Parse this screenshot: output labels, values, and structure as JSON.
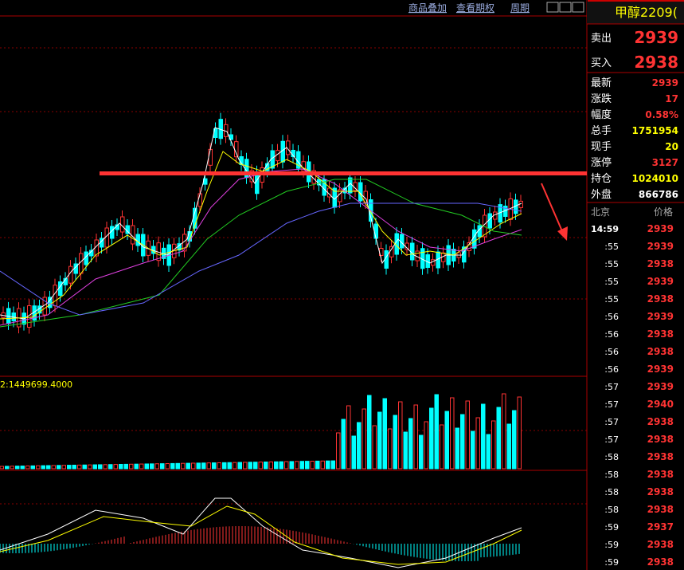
{
  "toolbar": {
    "items": [
      "商品叠加",
      "查看期权",
      "周期"
    ]
  },
  "volume_label": "2:1449699.4000",
  "quote": {
    "title": "甲醇2209(",
    "ask": {
      "label": "卖出",
      "value": "2939"
    },
    "bid": {
      "label": "买入",
      "value": "2938"
    },
    "stats": [
      {
        "label": "最新",
        "value": "2939"
      },
      {
        "label": "涨跌",
        "value": "17"
      },
      {
        "label": "幅度",
        "value": "0.58%"
      },
      {
        "label": "总手",
        "value": "1751954"
      },
      {
        "label": "现手",
        "value": "20"
      },
      {
        "label": "涨停",
        "value": "3127"
      },
      {
        "label": "持仓",
        "value": "1024010"
      },
      {
        "label": "外盘",
        "value": "866786"
      }
    ],
    "ticks_header": {
      "time": "北京",
      "price": "价格"
    },
    "ticks": [
      {
        "time": "14:59",
        "price": "2939"
      },
      {
        "time": ":55",
        "price": "2939"
      },
      {
        "time": ":55",
        "price": "2938"
      },
      {
        "time": ":55",
        "price": "2939"
      },
      {
        "time": ":55",
        "price": "2938"
      },
      {
        "time": ":56",
        "price": "2939"
      },
      {
        "time": ":56",
        "price": "2938"
      },
      {
        "time": ":56",
        "price": "2938"
      },
      {
        "time": ":56",
        "price": "2939"
      },
      {
        "time": ":57",
        "price": "2939"
      },
      {
        "time": ":57",
        "price": "2940"
      },
      {
        "time": ":57",
        "price": "2938"
      },
      {
        "time": ":57",
        "price": "2938"
      },
      {
        "time": ":58",
        "price": "2938"
      },
      {
        "time": ":58",
        "price": "2938"
      },
      {
        "time": ":58",
        "price": "2938"
      },
      {
        "time": ":58",
        "price": "2938"
      },
      {
        "time": ":59",
        "price": "2937"
      },
      {
        "time": ":59",
        "price": "2938"
      },
      {
        "time": ":59",
        "price": "2938"
      }
    ]
  }
}
